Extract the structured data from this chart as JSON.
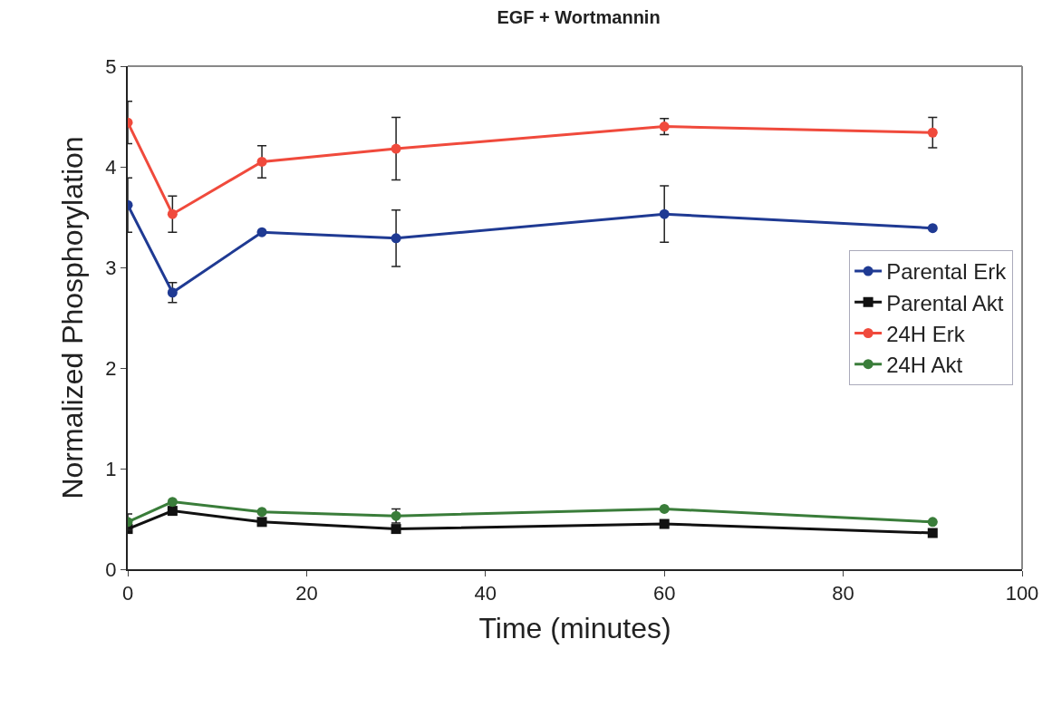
{
  "chart_data": {
    "type": "line",
    "title": "EGF + Wortmannin",
    "xlabel": "Time (minutes)",
    "ylabel": "Normalized Phosphorylation",
    "x": [
      0,
      5,
      15,
      30,
      60,
      90
    ],
    "series": [
      {
        "name": "Parental Erk",
        "color": "#1f3a93",
        "marker": "circle",
        "values": [
          3.62,
          2.75,
          3.35,
          3.29,
          3.53,
          3.39
        ],
        "errors": [
          0.27,
          0.1,
          null,
          0.28,
          0.28,
          null
        ]
      },
      {
        "name": "Parental Akt",
        "color": "#111111",
        "marker": "square",
        "values": [
          0.4,
          0.58,
          0.47,
          0.4,
          0.45,
          0.36
        ]
      },
      {
        "name": "24H Erk",
        "color": "#f04a3c",
        "marker": "circle",
        "values": [
          4.44,
          3.53,
          4.05,
          4.18,
          4.4,
          4.34
        ],
        "errors": [
          0.21,
          0.18,
          0.16,
          0.31,
          0.08,
          0.15
        ]
      },
      {
        "name": "24H Akt",
        "color": "#3a7d3a",
        "marker": "circle",
        "values": [
          0.47,
          0.67,
          0.57,
          0.53,
          0.6,
          0.47
        ],
        "errors": [
          0.08,
          null,
          null,
          0.07,
          null,
          null
        ]
      }
    ],
    "xlim": [
      0,
      100
    ],
    "xticks": [
      0,
      20,
      40,
      60,
      80,
      100
    ],
    "ylim": [
      0,
      5
    ],
    "yticks": [
      0,
      1,
      2,
      3,
      4,
      5
    ],
    "legend": "right",
    "line_style": "solid"
  }
}
